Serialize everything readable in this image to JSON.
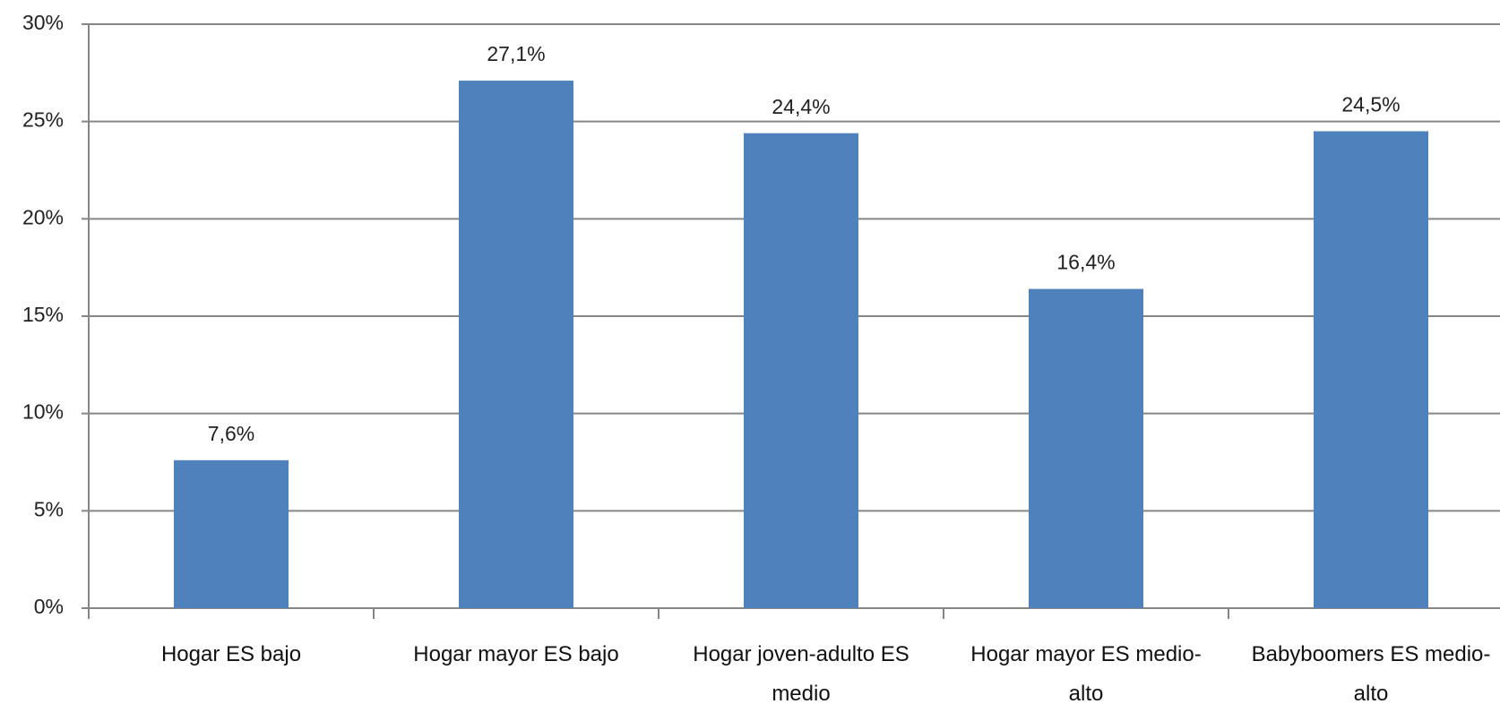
{
  "chart_data": {
    "type": "bar",
    "categories": [
      "Hogar ES bajo",
      "Hogar mayor ES bajo",
      "Hogar joven-adulto ES medio",
      "Hogar mayor ES medio-alto",
      "Babyboomers ES medio-alto"
    ],
    "values": [
      7.6,
      27.1,
      24.4,
      16.4,
      24.5
    ],
    "value_labels": [
      "7,6%",
      "27,1%",
      "24,4%",
      "16,4%",
      "24,5%"
    ],
    "color": "#4f81bd",
    "ylim": [
      0,
      30
    ],
    "yticks": [
      {
        "value": 0,
        "label": "0%"
      },
      {
        "value": 5,
        "label": "5%"
      },
      {
        "value": 10,
        "label": "10%"
      },
      {
        "value": 15,
        "label": "15%"
      },
      {
        "value": 20,
        "label": "20%"
      },
      {
        "value": 25,
        "label": "25%"
      },
      {
        "value": 30,
        "label": "30%"
      }
    ],
    "grid": true
  }
}
